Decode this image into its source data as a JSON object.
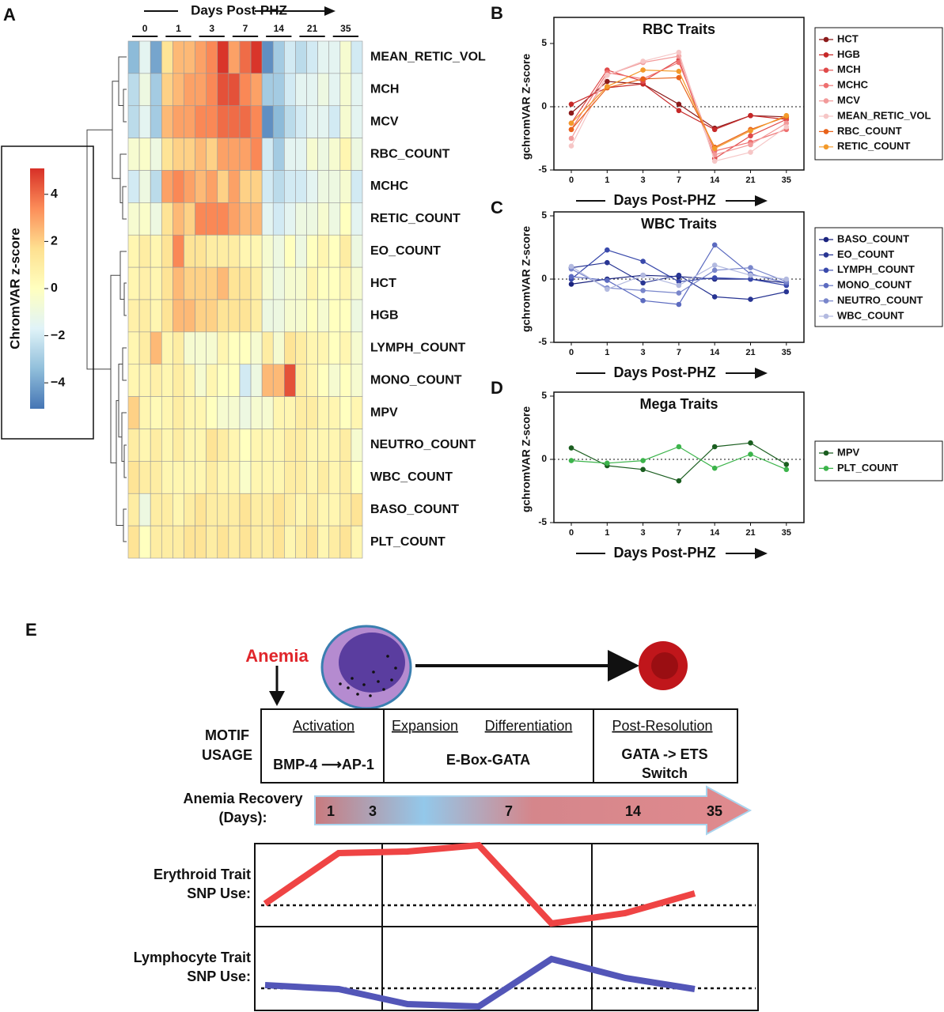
{
  "chart_data": [
    {
      "type": "heatmap",
      "panel_label": "A",
      "title": "Days Post-PHZ",
      "column_groups": [
        "0",
        "1",
        "3",
        "7",
        "14",
        "21",
        "35"
      ],
      "rows": [
        "MEAN_RETIC_VOL",
        "MCH",
        "MCV",
        "RBC_COUNT",
        "MCHC",
        "RETIC_COUNT",
        "EO_COUNT",
        "HCT",
        "HGB",
        "LYMPH_COUNT",
        "MONO_COUNT",
        "MPV",
        "NEUTRO_COUNT",
        "WBC_COUNT",
        "BASO_COUNT",
        "PLT_COUNT"
      ],
      "values": [
        [
          -3.5,
          -1.5,
          -4,
          1.5,
          2.5,
          2.5,
          3,
          3.5,
          5,
          3,
          4,
          5,
          -4.5,
          -3,
          -2,
          -2.5,
          -2,
          -1.5,
          -1.5,
          -0.5,
          -2
        ],
        [
          -2.5,
          -1,
          -3,
          2,
          2.5,
          3,
          3,
          3.5,
          4.5,
          4.5,
          3.5,
          3,
          -3,
          -3,
          -2,
          -1.5,
          -1.5,
          -1,
          -1.5,
          -0.5,
          -1.5
        ],
        [
          -2.5,
          -1.5,
          -3,
          2.5,
          3,
          3,
          3.5,
          3.5,
          4,
          4,
          4,
          3.5,
          -4.5,
          -3.5,
          -2.5,
          -2,
          -1.5,
          -1.5,
          -2,
          -0.5,
          -1.5
        ],
        [
          -0.5,
          -0.3,
          -1,
          1.5,
          2,
          2,
          2.5,
          2,
          3,
          3,
          3,
          3.5,
          -2,
          -3,
          -1.5,
          -1.5,
          -0.5,
          -1,
          -0.5,
          0.5,
          -1
        ],
        [
          -2,
          -1,
          -2.5,
          3,
          3.5,
          3,
          2.5,
          3,
          2,
          3,
          2,
          2,
          -2,
          -2.5,
          -2,
          -2,
          -1.5,
          -1,
          -1,
          -0.5,
          -2
        ],
        [
          -0.5,
          -0.3,
          -1,
          1.5,
          2.5,
          2,
          3.5,
          3.5,
          3.5,
          3,
          2.5,
          2.5,
          -1.5,
          -2,
          -1.5,
          -1,
          -1,
          -0.5,
          -1,
          0,
          -1.5
        ],
        [
          0.5,
          1,
          0.5,
          1.5,
          3.5,
          1.5,
          1.5,
          1,
          1,
          1,
          0.5,
          0.5,
          -0.5,
          -1,
          0,
          -1,
          0,
          0.5,
          0,
          1,
          -1
        ],
        [
          0.5,
          0.8,
          0.5,
          1.5,
          2.5,
          2,
          2,
          2,
          2.5,
          1.5,
          1.5,
          1,
          -0.5,
          -1,
          -0.5,
          -0.5,
          0.5,
          0,
          0,
          0.5,
          -0.5
        ],
        [
          0.8,
          1,
          0.5,
          1.5,
          2.5,
          2.5,
          2,
          2,
          1.5,
          1.5,
          1.5,
          1,
          -1,
          -1,
          -0.5,
          -0.5,
          0,
          -0.5,
          0,
          0,
          -1
        ],
        [
          0.5,
          1,
          2.5,
          0.5,
          1,
          -0.5,
          -0.5,
          -0.5,
          0.5,
          0,
          0,
          -0.5,
          1,
          -0.5,
          1.5,
          1,
          0.5,
          0.5,
          0,
          0.5,
          -0.5
        ],
        [
          0.5,
          0.5,
          0.8,
          0.5,
          1,
          0.5,
          -0.5,
          0.5,
          0,
          0,
          -2,
          -1,
          2.5,
          2.5,
          4.5,
          1,
          0.5,
          0,
          -0.5,
          0,
          -0.5
        ],
        [
          2,
          0.5,
          0.3,
          0.5,
          1,
          0.5,
          0.5,
          0,
          -0.5,
          -0.5,
          -1,
          -0.5,
          -0.5,
          0.5,
          0.5,
          1,
          1,
          0.5,
          0.5,
          0,
          0.5
        ],
        [
          1,
          0.5,
          1,
          0.5,
          1,
          0.5,
          0.5,
          1.5,
          1,
          0.5,
          0,
          0.5,
          0.5,
          0.5,
          1,
          1,
          0.5,
          0.5,
          0.5,
          1,
          -0.5
        ],
        [
          1.5,
          1,
          1,
          0.5,
          0.5,
          0.5,
          0.5,
          1,
          0.5,
          0.5,
          -0.3,
          0.5,
          0.5,
          0.5,
          1,
          1,
          0.5,
          1,
          0.5,
          1,
          0
        ],
        [
          1,
          -1,
          1,
          1,
          0.5,
          1,
          1.5,
          1,
          1,
          1,
          1.5,
          1,
          1,
          1.5,
          1,
          0.5,
          1,
          0.5,
          0.5,
          1,
          1.5
        ],
        [
          1.5,
          0,
          1,
          1,
          1,
          1.5,
          1.5,
          1,
          1.5,
          1,
          1.5,
          1,
          1,
          1.5,
          0.5,
          1,
          1.5,
          0.5,
          1,
          1.5,
          0.5
        ]
      ],
      "colorbar_label": "ChromVAR z-score",
      "zlim": [
        -5.1,
        5.1
      ],
      "colorbar_ticks": [
        4,
        2,
        0,
        {
          "value": -2,
          "label": "−2"
        },
        {
          "value": -4,
          "label": "−4"
        }
      ],
      "colors": [
        "#4575b4",
        "#91bfdb",
        "#e0f3f8",
        "#ffffbf",
        "#fee090",
        "#fc8d59",
        "#d73027"
      ]
    },
    {
      "type": "line",
      "panel_label": "B",
      "title": "RBC Traits",
      "ylabel": "gchromVAR Z-score",
      "xlabel": "Days Post-PHZ",
      "categories": [
        "0",
        "1",
        "3",
        "7",
        "14",
        "21",
        "35"
      ],
      "ylim": [
        -5,
        5
      ],
      "yticks": [
        -5,
        0,
        5
      ],
      "legend": "right",
      "series": [
        {
          "name": "HCT",
          "color": "#8b1a1a",
          "values": [
            -0.5,
            2,
            1.8,
            0.2,
            -1.7,
            -0.7,
            -0.8
          ]
        },
        {
          "name": "HGB",
          "color": "#c62828",
          "values": [
            0.2,
            1.5,
            1.8,
            -0.3,
            -1.8,
            -0.7,
            -1.0
          ]
        },
        {
          "name": "MCH",
          "color": "#e04a4a",
          "values": [
            -1.3,
            2.9,
            2.0,
            3.7,
            -4.1,
            -2.3,
            -1.0
          ]
        },
        {
          "name": "MCHC",
          "color": "#ee7070",
          "values": [
            -1.8,
            2.7,
            2.2,
            3.5,
            -3.5,
            -2.8,
            -1.8
          ]
        },
        {
          "name": "MCV",
          "color": "#f29a9a",
          "values": [
            -2.5,
            2.5,
            3.5,
            4.0,
            -3.8,
            -3.0,
            -1.3
          ]
        },
        {
          "name": "MEAN_RETIC_VOL",
          "color": "#f6c6c6",
          "values": [
            -3.1,
            2.5,
            3.6,
            4.3,
            -4.3,
            -3.6,
            -1.6
          ]
        },
        {
          "name": "RBC_COUNT",
          "color": "#e8621a",
          "values": [
            -1.8,
            1.5,
            2.2,
            2.3,
            -3.2,
            -1.8,
            -0.8
          ]
        },
        {
          "name": "RETIC_COUNT",
          "color": "#f39a2a",
          "values": [
            -1.3,
            1.6,
            2.9,
            2.8,
            -3.3,
            -1.9,
            -0.7
          ]
        }
      ]
    },
    {
      "type": "line",
      "panel_label": "C",
      "title": "WBC Traits",
      "ylabel": "gchromVAR Z-score",
      "xlabel": "Days Post-PHZ",
      "categories": [
        "0",
        "1",
        "3",
        "7",
        "14",
        "21",
        "35"
      ],
      "ylim": [
        -5,
        5
      ],
      "yticks": [
        -5,
        0,
        5
      ],
      "legend": "right",
      "series": [
        {
          "name": "BASO_COUNT",
          "color": "#1a237e",
          "values": [
            -0.4,
            0.0,
            0.3,
            0.2,
            0.0,
            0.0,
            -0.3
          ]
        },
        {
          "name": "EO_COUNT",
          "color": "#283593",
          "values": [
            0.9,
            1.3,
            -0.3,
            0.3,
            -1.4,
            -1.6,
            -1.0
          ]
        },
        {
          "name": "LYMPH_COUNT",
          "color": "#3949ab",
          "values": [
            0.0,
            2.3,
            1.4,
            -0.2,
            0.1,
            0.0,
            -0.5
          ]
        },
        {
          "name": "MONO_COUNT",
          "color": "#5c6bc0",
          "values": [
            0.2,
            -0.1,
            -1.7,
            -2.0,
            2.7,
            0.4,
            -0.3
          ]
        },
        {
          "name": "NEUTRO_COUNT",
          "color": "#7986cb",
          "values": [
            0.8,
            -0.7,
            -0.9,
            -1.1,
            0.7,
            0.9,
            -0.2
          ]
        },
        {
          "name": "WBC_COUNT",
          "color": "#b3bae0",
          "values": [
            1.0,
            -0.8,
            0.3,
            -0.5,
            1.1,
            0.3,
            0.0
          ]
        }
      ]
    },
    {
      "type": "line",
      "panel_label": "D",
      "title": "Mega Traits",
      "ylabel": "gchromVAR Z-score",
      "xlabel": "Days Post-PHZ",
      "categories": [
        "0",
        "1",
        "3",
        "7",
        "14",
        "21",
        "35"
      ],
      "ylim": [
        -5,
        5
      ],
      "yticks": [
        -5,
        0,
        5
      ],
      "legend": "right",
      "series": [
        {
          "name": "MPV",
          "color": "#1b5e20",
          "values": [
            0.9,
            -0.5,
            -0.8,
            -1.7,
            1.0,
            1.3,
            -0.4
          ]
        },
        {
          "name": "PLT_COUNT",
          "color": "#3cb44b",
          "values": [
            -0.1,
            -0.3,
            -0.1,
            1.0,
            -0.7,
            0.4,
            -0.8
          ]
        }
      ]
    }
  ],
  "diagram": {
    "panel_label": "E",
    "trigger": "Anemia",
    "motif_usage": [
      "MOTIF",
      "USAGE"
    ],
    "stages": [
      "Activation",
      "Expansion",
      "Differentiation",
      "Post-Resolution"
    ],
    "motifs": [
      "BMP-4 ⟶AP-1",
      "E-Box-GATA",
      [
        "GATA -> ETS",
        "Switch"
      ]
    ],
    "recovery_label": [
      "Anemia Recovery",
      "(Days):"
    ],
    "recovery_days": [
      1,
      3,
      7,
      14,
      35
    ],
    "tracks": [
      [
        "Erythroid Trait",
        "SNP Use:"
      ],
      [
        "Lymphocyte Trait",
        "SNP Use:"
      ]
    ]
  }
}
